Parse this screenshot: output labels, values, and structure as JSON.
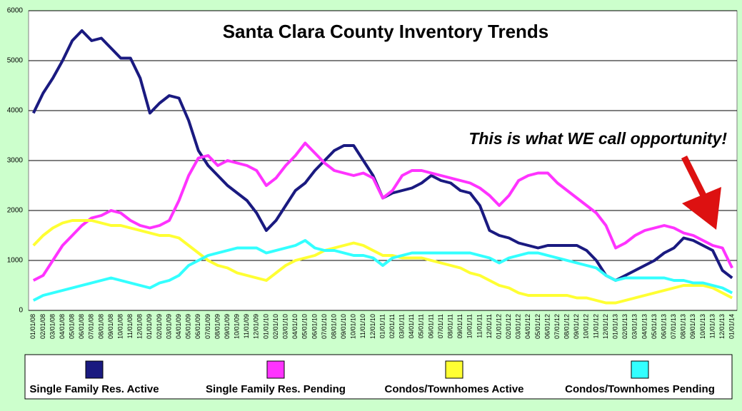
{
  "chart_data": {
    "type": "line",
    "title": "Santa Clara County Inventory Trends",
    "annotation": "This is what WE call opportunity!",
    "categories": [
      "01/01/08",
      "02/01/08",
      "03/01/08",
      "04/01/08",
      "05/01/08",
      "06/01/08",
      "07/01/08",
      "08/01/08",
      "09/01/08",
      "10/01/08",
      "11/01/08",
      "12/01/08",
      "01/01/09",
      "02/01/09",
      "03/01/09",
      "04/01/09",
      "05/01/09",
      "06/01/09",
      "07/01/09",
      "08/01/09",
      "09/01/09",
      "10/01/09",
      "11/01/09",
      "12/01/09",
      "01/01/10",
      "02/01/10",
      "03/01/10",
      "04/01/10",
      "05/01/10",
      "06/01/10",
      "07/01/10",
      "08/01/10",
      "09/01/10",
      "10/01/10",
      "11/01/10",
      "12/01/10",
      "01/01/11",
      "02/01/11",
      "03/01/11",
      "04/01/11",
      "05/01/11",
      "06/01/11",
      "07/01/11",
      "08/01/11",
      "09/01/11",
      "10/01/11",
      "11/01/11",
      "12/01/11",
      "01/01/12",
      "02/01/12",
      "03/01/12",
      "04/01/12",
      "05/01/12",
      "06/01/12",
      "07/01/12",
      "08/01/12",
      "09/01/12",
      "10/01/12",
      "11/01/12",
      "12/01/12",
      "01/01/13",
      "02/01/13",
      "03/01/13",
      "04/01/13",
      "05/01/13",
      "06/01/13",
      "07/01/13",
      "08/01/13",
      "09/01/13",
      "10/01/13",
      "11/01/13",
      "12/01/13",
      "01/01/14"
    ],
    "series": [
      {
        "name": "Single Family Res. Active",
        "color": "#1a1a80",
        "values": [
          3950,
          4350,
          4650,
          5000,
          5400,
          5600,
          5400,
          5450,
          5250,
          5050,
          5050,
          4650,
          3950,
          4150,
          4300,
          4250,
          3800,
          3200,
          2900,
          2700,
          2500,
          2350,
          2200,
          1950,
          1600,
          1800,
          2100,
          2400,
          2550,
          2800,
          3000,
          3200,
          3300,
          3300,
          3000,
          2700,
          2250,
          2350,
          2400,
          2450,
          2550,
          2700,
          2600,
          2550,
          2400,
          2350,
          2100,
          1600,
          1500,
          1450,
          1350,
          1300,
          1250,
          1300,
          1300,
          1300,
          1300,
          1200,
          1000,
          700,
          600,
          700,
          800,
          900,
          1000,
          1150,
          1250,
          1450,
          1400,
          1300,
          1200,
          800,
          650
        ]
      },
      {
        "name": "Single Family Res. Pending",
        "color": "#ff33ff",
        "values": [
          600,
          700,
          1000,
          1300,
          1500,
          1700,
          1850,
          1900,
          2000,
          1950,
          1800,
          1700,
          1650,
          1700,
          1800,
          2200,
          2700,
          3050,
          3100,
          2900,
          3000,
          2950,
          2900,
          2800,
          2500,
          2650,
          2900,
          3100,
          3350,
          3150,
          2950,
          2800,
          2750,
          2700,
          2750,
          2650,
          2250,
          2400,
          2700,
          2800,
          2800,
          2750,
          2700,
          2650,
          2600,
          2550,
          2450,
          2300,
          2100,
          2300,
          2600,
          2700,
          2750,
          2750,
          2550,
          2400,
          2250,
          2100,
          1950,
          1700,
          1250,
          1350,
          1500,
          1600,
          1650,
          1700,
          1650,
          1550,
          1500,
          1400,
          1300,
          1250,
          850
        ]
      },
      {
        "name": "Condos/Townhomes Active",
        "color": "#ffff33",
        "values": [
          1300,
          1500,
          1650,
          1750,
          1800,
          1800,
          1800,
          1750,
          1700,
          1700,
          1650,
          1600,
          1550,
          1500,
          1500,
          1450,
          1300,
          1150,
          1000,
          900,
          850,
          750,
          700,
          650,
          600,
          750,
          900,
          1000,
          1050,
          1100,
          1200,
          1250,
          1300,
          1350,
          1300,
          1200,
          1100,
          1100,
          1050,
          1050,
          1050,
          1000,
          950,
          900,
          850,
          750,
          700,
          600,
          500,
          450,
          350,
          300,
          300,
          300,
          300,
          300,
          250,
          250,
          200,
          150,
          150,
          200,
          250,
          300,
          350,
          400,
          450,
          500,
          500,
          500,
          450,
          350,
          250
        ]
      },
      {
        "name": "Condos/Townhomes Pending",
        "color": "#33ffff",
        "values": [
          200,
          300,
          350,
          400,
          450,
          500,
          550,
          600,
          650,
          600,
          550,
          500,
          450,
          550,
          600,
          700,
          900,
          1000,
          1100,
          1150,
          1200,
          1250,
          1250,
          1250,
          1150,
          1200,
          1250,
          1300,
          1400,
          1250,
          1200,
          1200,
          1150,
          1100,
          1100,
          1050,
          900,
          1050,
          1100,
          1150,
          1150,
          1150,
          1150,
          1150,
          1150,
          1150,
          1100,
          1050,
          950,
          1050,
          1100,
          1150,
          1150,
          1100,
          1050,
          1000,
          950,
          900,
          850,
          700,
          600,
          650,
          650,
          650,
          650,
          650,
          600,
          600,
          550,
          550,
          500,
          450,
          350
        ]
      }
    ],
    "ylim": [
      0,
      6000
    ],
    "yticks": [
      0,
      1000,
      2000,
      3000,
      4000,
      5000,
      6000
    ],
    "grid": true,
    "legend": "bottom"
  }
}
